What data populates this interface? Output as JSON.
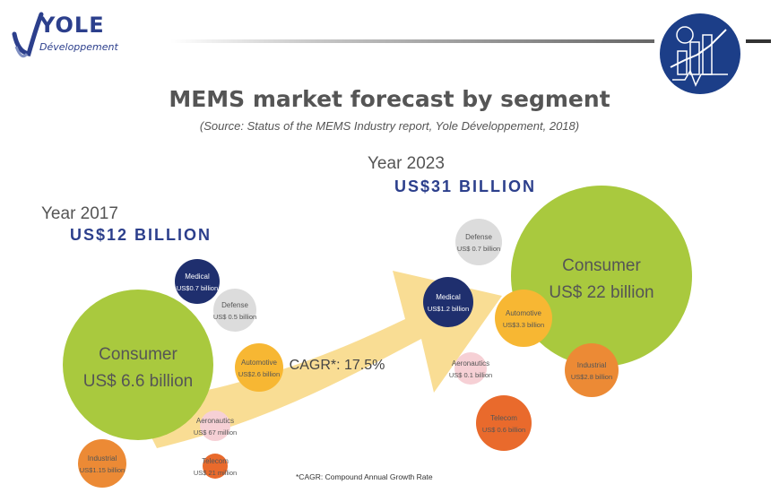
{
  "header": {
    "logo_name": "YOLE",
    "logo_sub": "Développement",
    "title": "MEMS market forecast by segment",
    "source": "(Source: Status of the MEMS Industry report, Yole Développement, 2018)"
  },
  "footnote": "*CAGR: Compound Annual Growth Rate",
  "colors": {
    "consumer": "#a9c93e",
    "medical": "#1f2f6e",
    "defense": "#dcdcdc",
    "automotive": "#f7b733",
    "aeronautics": "#f6d0d5",
    "industrial": "#ec8a35",
    "telecom": "#e96a2c",
    "arrow": "#f9dd94",
    "brand": "#2c3f8c"
  },
  "chart_data": {
    "type": "bubble",
    "growth_label": "CAGR*: 17.5%",
    "years": [
      {
        "year_label": "Year 2017",
        "total_label": "US$12 BILLION",
        "segments": [
          {
            "name": "Consumer",
            "value_label": "US$ 6.6 billion",
            "value_musd": 6600
          },
          {
            "name": "Medical",
            "value_label": "US$0.7 billion",
            "value_musd": 700
          },
          {
            "name": "Defense",
            "value_label": "US$ 0.5 billion",
            "value_musd": 500
          },
          {
            "name": "Automotive",
            "value_label": "US$2.6 billion",
            "value_musd": 2600
          },
          {
            "name": "Aeronautics",
            "value_label": "US$ 67 million",
            "value_musd": 67
          },
          {
            "name": "Industrial",
            "value_label": "US$1.15 billion",
            "value_musd": 1150
          },
          {
            "name": "Telecom",
            "value_label": "US$ 21 million",
            "value_musd": 21
          }
        ]
      },
      {
        "year_label": "Year 2023",
        "total_label": "US$31 BILLION",
        "segments": [
          {
            "name": "Consumer",
            "value_label": "US$ 22 billion",
            "value_musd": 22000
          },
          {
            "name": "Defense",
            "value_label": "US$ 0.7 billion",
            "value_musd": 700
          },
          {
            "name": "Medical",
            "value_label": "US$1.2 billion",
            "value_musd": 1200
          },
          {
            "name": "Automotive",
            "value_label": "US$3.3 billion",
            "value_musd": 3300
          },
          {
            "name": "Aeronautics",
            "value_label": "US$ 0.1 billion",
            "value_musd": 100
          },
          {
            "name": "Industrial",
            "value_label": "US$2.8 billion",
            "value_musd": 2800
          },
          {
            "name": "Telecom",
            "value_label": "US$ 0.6 billion",
            "value_musd": 600
          }
        ]
      }
    ]
  }
}
